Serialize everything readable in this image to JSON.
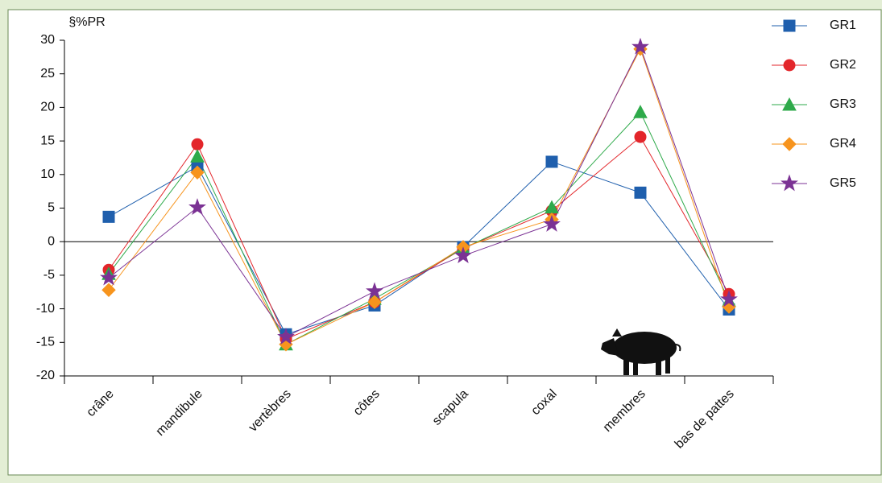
{
  "chart_data": {
    "type": "line",
    "y_label": "§%PR",
    "categories": [
      "crâne",
      "mandibule",
      "vertèbres",
      "côtes",
      "scapula",
      "coxal",
      "membres",
      "bas de pattes"
    ],
    "series": [
      {
        "name": "GR1",
        "color": "#1f5fad",
        "marker": "square",
        "values": [
          3.7,
          11.2,
          -13.8,
          -9.5,
          -0.8,
          11.9,
          7.3,
          -10.1
        ]
      },
      {
        "name": "GR2",
        "color": "#e3262b",
        "marker": "circle",
        "values": [
          -4.2,
          14.5,
          -14.5,
          -9.0,
          -1.0,
          4.6,
          15.6,
          -7.8
        ]
      },
      {
        "name": "GR3",
        "color": "#2eaa4a",
        "marker": "triangle",
        "values": [
          -4.8,
          12.7,
          -15.3,
          -8.5,
          -1.0,
          5.1,
          19.3,
          -8.8
        ]
      },
      {
        "name": "GR4",
        "color": "#f7941d",
        "marker": "diamond",
        "values": [
          -7.2,
          10.3,
          -15.3,
          -9.0,
          -0.8,
          3.3,
          28.7,
          -9.7
        ]
      },
      {
        "name": "GR5",
        "color": "#7b3294",
        "marker": "star",
        "values": [
          -5.4,
          5.1,
          -14.2,
          -7.4,
          -2.1,
          2.6,
          29.0,
          -8.6
        ]
      }
    ],
    "ylim": [
      -20,
      30
    ],
    "yticks": [
      -20,
      -15,
      -10,
      -5,
      0,
      5,
      10,
      15,
      20,
      25,
      30
    ],
    "zero_line": true,
    "grid": false,
    "legend": "top-right"
  }
}
